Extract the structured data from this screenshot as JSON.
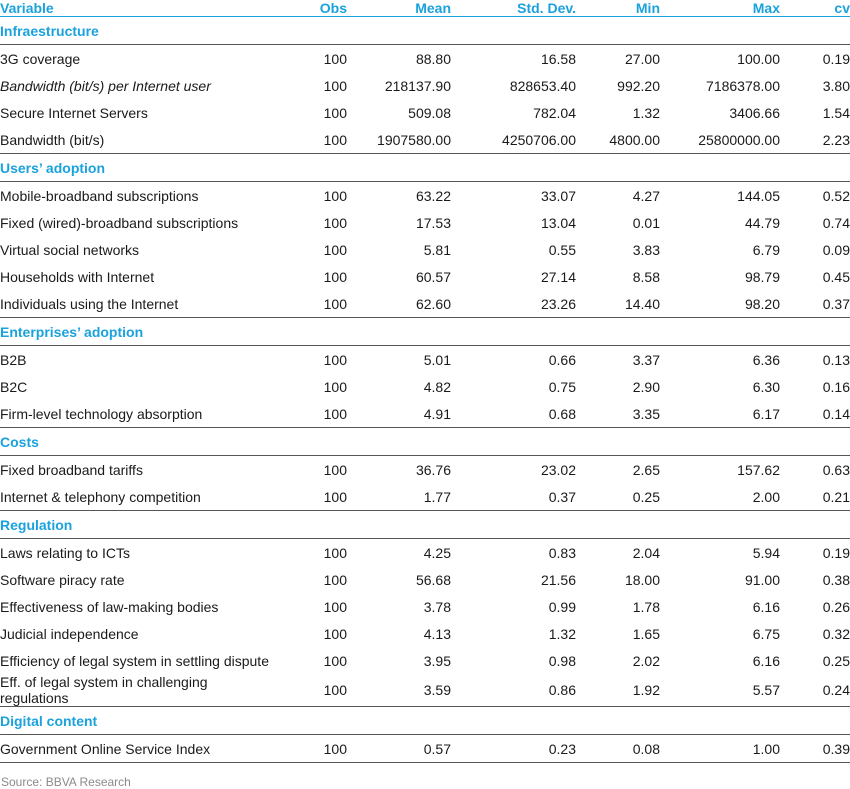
{
  "headers": [
    "Variable",
    "Obs",
    "Mean",
    "Std. Dev.",
    "Min",
    "Max",
    "cv"
  ],
  "sections": [
    {
      "title": "Infraestructure",
      "rows": [
        {
          "variable": "3G coverage",
          "obs": "100",
          "mean": "88.80",
          "std": "16.58",
          "min": "27.00",
          "max": "100.00",
          "cv": "0.19"
        },
        {
          "variable": "Bandwidth (bit/s) per Internet user",
          "italic": true,
          "obs": "100",
          "mean": "218137.90",
          "std": "828653.40",
          "min": "992.20",
          "max": "7186378.00",
          "cv": "3.80"
        },
        {
          "variable": "Secure Internet Servers",
          "obs": "100",
          "mean": "509.08",
          "std": "782.04",
          "min": "1.32",
          "max": "3406.66",
          "cv": "1.54"
        },
        {
          "variable": "Bandwidth (bit/s)",
          "obs": "100",
          "mean": "1907580.00",
          "std": "4250706.00",
          "min": "4800.00",
          "max": "25800000.00",
          "cv": "2.23"
        }
      ]
    },
    {
      "title": "Users’ adoption",
      "rows": [
        {
          "variable": "Mobile-broadband subscriptions",
          "obs": "100",
          "mean": "63.22",
          "std": "33.07",
          "min": "4.27",
          "max": "144.05",
          "cv": "0.52"
        },
        {
          "variable": "Fixed (wired)-broadband subscriptions",
          "obs": "100",
          "mean": "17.53",
          "std": "13.04",
          "min": "0.01",
          "max": "44.79",
          "cv": "0.74"
        },
        {
          "variable": "Virtual social networks",
          "obs": "100",
          "mean": "5.81",
          "std": "0.55",
          "min": "3.83",
          "max": "6.79",
          "cv": "0.09"
        },
        {
          "variable": "Households with Internet",
          "obs": "100",
          "mean": "60.57",
          "std": "27.14",
          "min": "8.58",
          "max": "98.79",
          "cv": "0.45"
        },
        {
          "variable": "Individuals using the Internet",
          "obs": "100",
          "mean": "62.60",
          "std": "23.26",
          "min": "14.40",
          "max": "98.20",
          "cv": "0.37"
        }
      ]
    },
    {
      "title": "Enterprises’ adoption",
      "rows": [
        {
          "variable": "B2B",
          "obs": "100",
          "mean": "5.01",
          "std": "0.66",
          "min": "3.37",
          "max": "6.36",
          "cv": "0.13"
        },
        {
          "variable": "B2C",
          "obs": "100",
          "mean": "4.82",
          "std": "0.75",
          "min": "2.90",
          "max": "6.30",
          "cv": "0.16"
        },
        {
          "variable": "Firm-level technology absorption",
          "obs": "100",
          "mean": "4.91",
          "std": "0.68",
          "min": "3.35",
          "max": "6.17",
          "cv": "0.14"
        }
      ]
    },
    {
      "title": "Costs",
      "rows": [
        {
          "variable": "Fixed broadband tariffs",
          "obs": "100",
          "mean": "36.76",
          "std": "23.02",
          "min": "2.65",
          "max": "157.62",
          "cv": "0.63"
        },
        {
          "variable": "Internet & telephony competition",
          "obs": "100",
          "mean": "1.77",
          "std": "0.37",
          "min": "0.25",
          "max": "2.00",
          "cv": "0.21"
        }
      ]
    },
    {
      "title": "Regulation",
      "rows": [
        {
          "variable": "Laws relating to ICTs",
          "obs": "100",
          "mean": "4.25",
          "std": "0.83",
          "min": "2.04",
          "max": "5.94",
          "cv": "0.19"
        },
        {
          "variable": "Software piracy rate",
          "obs": "100",
          "mean": "56.68",
          "std": "21.56",
          "min": "18.00",
          "max": "91.00",
          "cv": "0.38"
        },
        {
          "variable": "Effectiveness of law-making bodies",
          "obs": "100",
          "mean": "3.78",
          "std": "0.99",
          "min": "1.78",
          "max": "6.16",
          "cv": "0.26"
        },
        {
          "variable": "Judicial independence",
          "obs": "100",
          "mean": "4.13",
          "std": "1.32",
          "min": "1.65",
          "max": "6.75",
          "cv": "0.32"
        },
        {
          "variable": "Efficiency of legal system in settling dispute",
          "obs": "100",
          "mean": "3.95",
          "std": "0.98",
          "min": "2.02",
          "max": "6.16",
          "cv": "0.25"
        },
        {
          "variable": "Eff. of legal system in challenging regulations",
          "obs": "100",
          "mean": "3.59",
          "std": "0.86",
          "min": "1.92",
          "max": "5.57",
          "cv": "0.24"
        }
      ]
    },
    {
      "title": "Digital content",
      "rows": [
        {
          "variable": "Government Online Service Index",
          "obs": "100",
          "mean": "0.57",
          "std": "0.23",
          "min": "0.08",
          "max": "1.00",
          "cv": "0.39"
        }
      ]
    }
  ],
  "source": "Source: BBVA Research",
  "colors": {
    "accent": "#1aa2dd",
    "text": "#1a1a1a",
    "source": "#8a8a8a"
  }
}
